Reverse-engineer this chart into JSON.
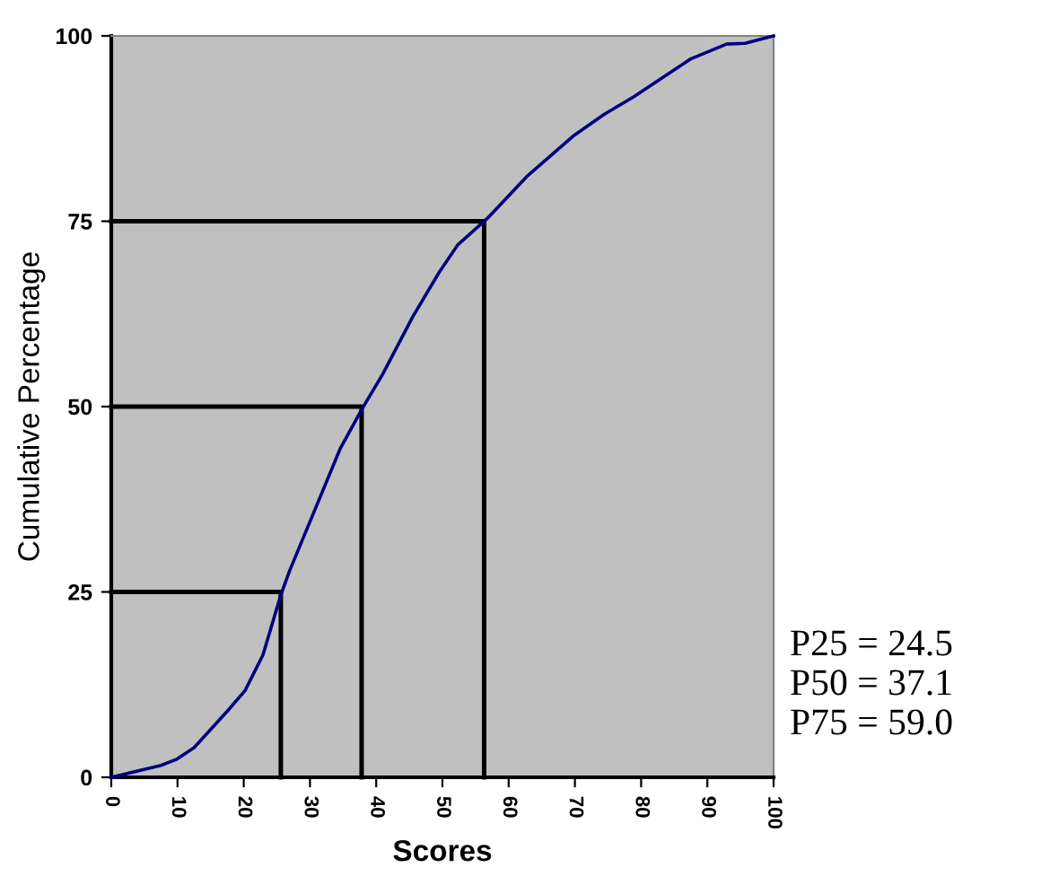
{
  "chart_data": {
    "type": "line",
    "xlabel": "Scores",
    "ylabel": "Cumulative Percentage",
    "xlim": [
      0,
      100
    ],
    "xticks": [
      0,
      10,
      20,
      30,
      40,
      50,
      60,
      70,
      80,
      90,
      100
    ],
    "ylim": [
      0,
      100
    ],
    "yticks": [
      0,
      25,
      50,
      75,
      100
    ],
    "grid": false,
    "legend": false,
    "marker": "none",
    "line_style": "solid",
    "series": [
      {
        "color": "#000080",
        "x": [
          0,
          7.5,
          9.8,
          12.5,
          17.5,
          20.2,
          22.9,
          25.6,
          26.9,
          30.1,
          34.6,
          37.8,
          41.0,
          45.5,
          49.5,
          52.3,
          56.8,
          62.7,
          69.9,
          74.4,
          78.9,
          84.3,
          87.5,
          92.9,
          95.7,
          100
        ],
        "values": [
          0,
          1.6,
          2.4,
          4.0,
          8.9,
          11.7,
          16.5,
          24.6,
          27.8,
          34.7,
          44.4,
          49.6,
          54.4,
          62.1,
          68.1,
          71.8,
          75.4,
          81.0,
          86.6,
          89.4,
          91.8,
          95.0,
          96.9,
          98.9,
          99.0,
          100
        ]
      },
      {
        "color": "#000000",
        "x": [
          0,
          25.6,
          25.6
        ],
        "values": [
          25,
          25,
          0
        ]
      },
      {
        "color": "#000000",
        "x": [
          0,
          37.8,
          37.8
        ],
        "values": [
          50,
          50,
          0
        ]
      },
      {
        "color": "#000000",
        "x": [
          0,
          56.3,
          56.3
        ],
        "values": [
          75,
          75,
          0
        ]
      }
    ],
    "annotations": [
      "P25 = 24.5",
      "P50 = 37.1",
      "P75 = 59.0"
    ]
  }
}
